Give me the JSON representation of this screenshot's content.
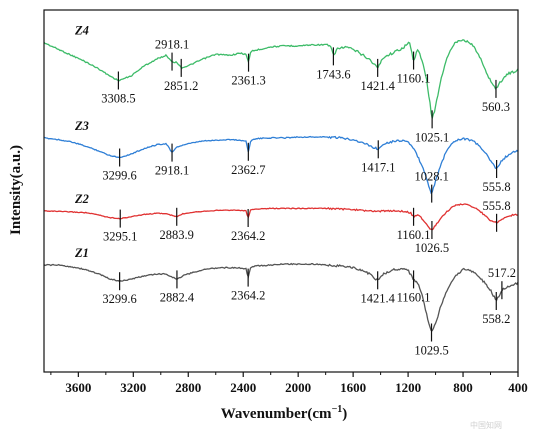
{
  "chart_data": {
    "type": "line",
    "xlabel": "Wavenumber(cm",
    "xlabel_sup": "−1",
    "xlabel_close": ")",
    "ylabel": "Intensity(a.u.)",
    "xlim": [
      3850,
      400
    ],
    "x_reversed": true,
    "grid": false,
    "x_ticks": [
      "3600",
      "3200",
      "2800",
      "2400",
      "2000",
      "1600",
      "1200",
      "800",
      "400"
    ],
    "series": [
      {
        "name": "Z4",
        "color": "#3dbb68",
        "points": [
          [
            3850,
            0.14
          ],
          [
            3750,
            0.2
          ],
          [
            3650,
            0.26
          ],
          [
            3550,
            0.32
          ],
          [
            3450,
            0.39
          ],
          [
            3380,
            0.45
          ],
          [
            3308.5,
            0.5
          ],
          [
            3220,
            0.46
          ],
          [
            3120,
            0.36
          ],
          [
            3020,
            0.29
          ],
          [
            2960,
            0.26
          ],
          [
            2918.1,
            0.32
          ],
          [
            2880,
            0.33
          ],
          [
            2851.2,
            0.38
          ],
          [
            2800,
            0.36
          ],
          [
            2700,
            0.3
          ],
          [
            2600,
            0.25
          ],
          [
            2500,
            0.26
          ],
          [
            2420,
            0.24
          ],
          [
            2380,
            0.25
          ],
          [
            2361.3,
            0.33
          ],
          [
            2345,
            0.22
          ],
          [
            2300,
            0.21
          ],
          [
            2200,
            0.18
          ],
          [
            2100,
            0.17
          ],
          [
            2000,
            0.17
          ],
          [
            1900,
            0.16
          ],
          [
            1800,
            0.16
          ],
          [
            1760,
            0.18
          ],
          [
            1743.6,
            0.27
          ],
          [
            1720,
            0.2
          ],
          [
            1650,
            0.18
          ],
          [
            1560,
            0.23
          ],
          [
            1480,
            0.3
          ],
          [
            1421.4,
            0.38
          ],
          [
            1380,
            0.28
          ],
          [
            1300,
            0.23
          ],
          [
            1240,
            0.19
          ],
          [
            1190,
            0.14
          ],
          [
            1160.1,
            0.31
          ],
          [
            1130,
            0.2
          ],
          [
            1100,
            0.3
          ],
          [
            1065,
            0.5
          ],
          [
            1040,
            0.72
          ],
          [
            1025.1,
            0.87
          ],
          [
            1000,
            0.75
          ],
          [
            960,
            0.48
          ],
          [
            920,
            0.3
          ],
          [
            880,
            0.18
          ],
          [
            840,
            0.12
          ],
          [
            800,
            0.11
          ],
          [
            760,
            0.13
          ],
          [
            720,
            0.18
          ],
          [
            680,
            0.27
          ],
          [
            640,
            0.4
          ],
          [
            600,
            0.5
          ],
          [
            560.3,
            0.58
          ],
          [
            520,
            0.5
          ],
          [
            480,
            0.44
          ],
          [
            440,
            0.42
          ],
          [
            400,
            0.4
          ]
        ]
      },
      {
        "name": "Z3",
        "color": "#2f7fd6",
        "points": [
          [
            3850,
            0.12
          ],
          [
            3750,
            0.14
          ],
          [
            3650,
            0.17
          ],
          [
            3550,
            0.22
          ],
          [
            3450,
            0.28
          ],
          [
            3380,
            0.33
          ],
          [
            3299.6,
            0.36
          ],
          [
            3220,
            0.32
          ],
          [
            3120,
            0.25
          ],
          [
            3020,
            0.2
          ],
          [
            2960,
            0.19
          ],
          [
            2918.1,
            0.3
          ],
          [
            2880,
            0.23
          ],
          [
            2820,
            0.2
          ],
          [
            2700,
            0.16
          ],
          [
            2600,
            0.15
          ],
          [
            2500,
            0.14
          ],
          [
            2420,
            0.15
          ],
          [
            2380,
            0.16
          ],
          [
            2362.7,
            0.29
          ],
          [
            2345,
            0.15
          ],
          [
            2300,
            0.13
          ],
          [
            2200,
            0.12
          ],
          [
            2100,
            0.12
          ],
          [
            2000,
            0.11
          ],
          [
            1900,
            0.11
          ],
          [
            1800,
            0.11
          ],
          [
            1700,
            0.12
          ],
          [
            1600,
            0.14
          ],
          [
            1500,
            0.2
          ],
          [
            1417.1,
            0.26
          ],
          [
            1380,
            0.19
          ],
          [
            1300,
            0.16
          ],
          [
            1240,
            0.15
          ],
          [
            1200,
            0.17
          ],
          [
            1160,
            0.25
          ],
          [
            1100,
            0.45
          ],
          [
            1060,
            0.65
          ],
          [
            1040,
            0.75
          ],
          [
            1028.1,
            0.8
          ],
          [
            1000,
            0.65
          ],
          [
            960,
            0.44
          ],
          [
            920,
            0.28
          ],
          [
            880,
            0.18
          ],
          [
            840,
            0.14
          ],
          [
            800,
            0.13
          ],
          [
            760,
            0.14
          ],
          [
            720,
            0.17
          ],
          [
            680,
            0.22
          ],
          [
            640,
            0.3
          ],
          [
            600,
            0.4
          ],
          [
            555.8,
            0.5
          ],
          [
            520,
            0.4
          ],
          [
            480,
            0.34
          ],
          [
            440,
            0.3
          ],
          [
            400,
            0.28
          ]
        ]
      },
      {
        "name": "Z2",
        "color": "#e03232",
        "points": [
          [
            3850,
            0.18
          ],
          [
            3750,
            0.19
          ],
          [
            3650,
            0.2
          ],
          [
            3550,
            0.21
          ],
          [
            3450,
            0.25
          ],
          [
            3380,
            0.29
          ],
          [
            3295.1,
            0.31
          ],
          [
            3220,
            0.28
          ],
          [
            3120,
            0.24
          ],
          [
            3020,
            0.22
          ],
          [
            2960,
            0.23
          ],
          [
            2883.9,
            0.28
          ],
          [
            2840,
            0.23
          ],
          [
            2760,
            0.2
          ],
          [
            2650,
            0.18
          ],
          [
            2550,
            0.17
          ],
          [
            2450,
            0.17
          ],
          [
            2380,
            0.18
          ],
          [
            2364.2,
            0.3
          ],
          [
            2345,
            0.16
          ],
          [
            2300,
            0.15
          ],
          [
            2200,
            0.14
          ],
          [
            2100,
            0.14
          ],
          [
            2000,
            0.14
          ],
          [
            1900,
            0.14
          ],
          [
            1800,
            0.14
          ],
          [
            1700,
            0.15
          ],
          [
            1600,
            0.16
          ],
          [
            1500,
            0.18
          ],
          [
            1420,
            0.19
          ],
          [
            1350,
            0.18
          ],
          [
            1280,
            0.18
          ],
          [
            1220,
            0.19
          ],
          [
            1180,
            0.22
          ],
          [
            1160.1,
            0.28
          ],
          [
            1120,
            0.25
          ],
          [
            1080,
            0.36
          ],
          [
            1050,
            0.46
          ],
          [
            1026.5,
            0.5
          ],
          [
            1000,
            0.42
          ],
          [
            960,
            0.3
          ],
          [
            920,
            0.2
          ],
          [
            880,
            0.12
          ],
          [
            840,
            0.08
          ],
          [
            800,
            0.07
          ],
          [
            760,
            0.08
          ],
          [
            720,
            0.12
          ],
          [
            680,
            0.18
          ],
          [
            640,
            0.26
          ],
          [
            600,
            0.34
          ],
          [
            555.8,
            0.38
          ],
          [
            520,
            0.32
          ],
          [
            480,
            0.28
          ],
          [
            440,
            0.25
          ],
          [
            400,
            0.24
          ]
        ]
      },
      {
        "name": "Z1",
        "color": "#555555",
        "points": [
          [
            3850,
            0.1
          ],
          [
            3750,
            0.1
          ],
          [
            3650,
            0.12
          ],
          [
            3550,
            0.15
          ],
          [
            3450,
            0.2
          ],
          [
            3380,
            0.25
          ],
          [
            3299.6,
            0.28
          ],
          [
            3220,
            0.26
          ],
          [
            3120,
            0.22
          ],
          [
            3020,
            0.2
          ],
          [
            2960,
            0.2
          ],
          [
            2882.4,
            0.26
          ],
          [
            2840,
            0.22
          ],
          [
            2760,
            0.18
          ],
          [
            2650,
            0.14
          ],
          [
            2550,
            0.13
          ],
          [
            2450,
            0.13
          ],
          [
            2380,
            0.14
          ],
          [
            2364.2,
            0.24
          ],
          [
            2345,
            0.12
          ],
          [
            2300,
            0.11
          ],
          [
            2200,
            0.1
          ],
          [
            2100,
            0.09
          ],
          [
            2000,
            0.09
          ],
          [
            1900,
            0.09
          ],
          [
            1800,
            0.1
          ],
          [
            1700,
            0.11
          ],
          [
            1600,
            0.13
          ],
          [
            1500,
            0.18
          ],
          [
            1421.4,
            0.27
          ],
          [
            1380,
            0.2
          ],
          [
            1300,
            0.15
          ],
          [
            1240,
            0.14
          ],
          [
            1200,
            0.16
          ],
          [
            1160.1,
            0.26
          ],
          [
            1130,
            0.3
          ],
          [
            1100,
            0.42
          ],
          [
            1070,
            0.62
          ],
          [
            1045,
            0.78
          ],
          [
            1029.5,
            0.85
          ],
          [
            1000,
            0.75
          ],
          [
            960,
            0.55
          ],
          [
            920,
            0.4
          ],
          [
            880,
            0.28
          ],
          [
            840,
            0.2
          ],
          [
            800,
            0.15
          ],
          [
            760,
            0.15
          ],
          [
            720,
            0.18
          ],
          [
            680,
            0.24
          ],
          [
            640,
            0.3
          ],
          [
            600,
            0.38
          ],
          [
            558.2,
            0.5
          ],
          [
            530,
            0.42
          ],
          [
            517.2,
            0.38
          ],
          [
            480,
            0.34
          ],
          [
            440,
            0.32
          ],
          [
            400,
            0.3
          ]
        ]
      }
    ],
    "annotations": [
      {
        "series": "Z4",
        "x": 3308.5,
        "label": "3308.5",
        "pos": "below"
      },
      {
        "series": "Z4",
        "x": 2918.1,
        "label": "2918.1",
        "pos": "above"
      },
      {
        "series": "Z4",
        "x": 2851.2,
        "label": "2851.2",
        "pos": "below"
      },
      {
        "series": "Z4",
        "x": 2361.3,
        "label": "2361.3",
        "pos": "below"
      },
      {
        "series": "Z4",
        "x": 1743.6,
        "label": "1743.6",
        "pos": "below"
      },
      {
        "series": "Z4",
        "x": 1421.4,
        "label": "1421.4",
        "pos": "below"
      },
      {
        "series": "Z4",
        "x": 1160.1,
        "label": "1160.1",
        "pos": "below"
      },
      {
        "series": "Z4",
        "x": 1025.1,
        "label": "1025.1",
        "pos": "below"
      },
      {
        "series": "Z4",
        "x": 560.3,
        "label": "560.3",
        "pos": "below"
      },
      {
        "series": "Z3",
        "x": 3299.6,
        "label": "3299.6",
        "pos": "below"
      },
      {
        "series": "Z3",
        "x": 2918.1,
        "label": "2918.1",
        "pos": "below"
      },
      {
        "series": "Z3",
        "x": 2362.7,
        "label": "2362.7",
        "pos": "below"
      },
      {
        "series": "Z3",
        "x": 1417.1,
        "label": "1417.1",
        "pos": "below"
      },
      {
        "series": "Z3",
        "x": 1028.1,
        "label": "1028.1",
        "pos": "above"
      },
      {
        "series": "Z3",
        "x": 555.8,
        "label": "555.8",
        "pos": "below"
      },
      {
        "series": "Z2",
        "x": 3295.1,
        "label": "3295.1",
        "pos": "below"
      },
      {
        "series": "Z2",
        "x": 2883.9,
        "label": "2883.9",
        "pos": "below"
      },
      {
        "series": "Z2",
        "x": 2364.2,
        "label": "2364.2",
        "pos": "below"
      },
      {
        "series": "Z2",
        "x": 1160.1,
        "label": "1160.1",
        "pos": "below"
      },
      {
        "series": "Z2",
        "x": 1026.5,
        "label": "1026.5",
        "pos": "below"
      },
      {
        "series": "Z2",
        "x": 555.8,
        "label": "555.8",
        "pos": "above"
      },
      {
        "series": "Z1",
        "x": 3299.6,
        "label": "3299.6",
        "pos": "below"
      },
      {
        "series": "Z1",
        "x": 2882.4,
        "label": "2882.4",
        "pos": "below"
      },
      {
        "series": "Z1",
        "x": 2364.2,
        "label": "2364.2",
        "pos": "below"
      },
      {
        "series": "Z1",
        "x": 1421.4,
        "label": "1421.4",
        "pos": "below"
      },
      {
        "series": "Z1",
        "x": 1160.1,
        "label": "1160.1",
        "pos": "below"
      },
      {
        "series": "Z1",
        "x": 1029.5,
        "label": "1029.5",
        "pos": "below"
      },
      {
        "series": "Z1",
        "x": 517.2,
        "label": "517.2",
        "pos": "above"
      },
      {
        "series": "Z1",
        "x": 558.2,
        "label": "558.2",
        "pos": "below"
      }
    ]
  },
  "watermark_text": "中国知网"
}
